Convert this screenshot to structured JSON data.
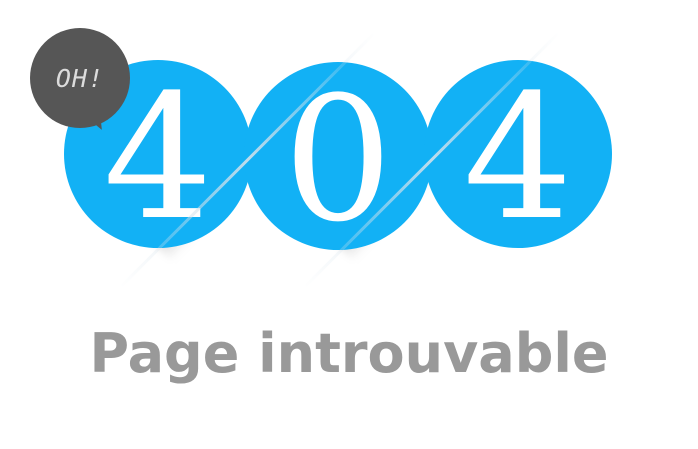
{
  "colors": {
    "accent": "#12b1f5",
    "bubble": "#565656",
    "message": "#999999"
  },
  "error": {
    "digits": [
      "4",
      "0",
      "4"
    ],
    "exclamation": "OH!",
    "message": "Page introuvable"
  },
  "icons": {
    "bubble": "speech-bubble-icon"
  }
}
